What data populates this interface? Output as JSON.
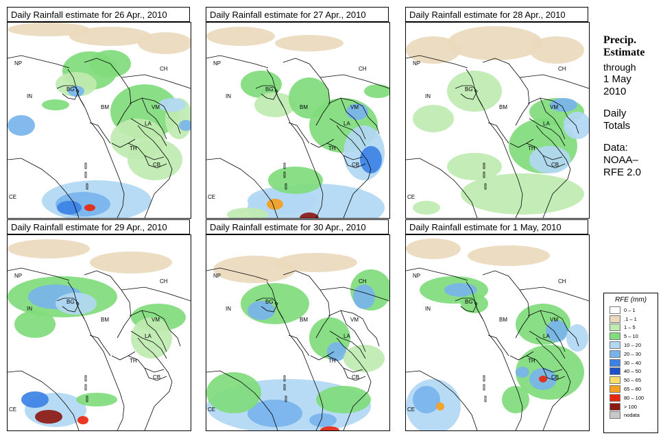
{
  "panels": [
    {
      "title": "Daily Rainfall estimate for  26 Apr., 2010"
    },
    {
      "title": "Daily Rainfall estimate for  27 Apr., 2010"
    },
    {
      "title": "Daily Rainfall estimate for  28 Apr., 2010"
    },
    {
      "title": "Daily Rainfall estimate for  29 Apr., 2010"
    },
    {
      "title": "Daily Rainfall estimate for  30 Apr., 2010"
    },
    {
      "title": "Daily Rainfall estimate for  1 May, 2010"
    }
  ],
  "country_labels": {
    "NP": "NP",
    "IN": "IN",
    "BG": "BG",
    "BM": "BM",
    "CH": "CH",
    "VM": "VM",
    "LA": "LA",
    "TH": "TH",
    "CB": "CB",
    "CE": "CE"
  },
  "sidebar": {
    "heading_1": "Precip.",
    "heading_2": "Estimate",
    "through": "through",
    "date_1": "1 May",
    "date_2": "2010",
    "daily_1": "Daily",
    "daily_2": "Totals",
    "data_1": "Data:",
    "data_2": "NOAA–",
    "data_3": "RFE 2.0"
  },
  "legend": {
    "title": "RFE (mm)",
    "items": [
      {
        "range": "0 – 1",
        "color": "#ffffff"
      },
      {
        "range": ".1 – 1",
        "color": "#ead9bc"
      },
      {
        "range": "1 – 5",
        "color": "#bfeab0"
      },
      {
        "range": "5 – 10",
        "color": "#80dc7c"
      },
      {
        "range": "10 – 20",
        "color": "#b2d8f4"
      },
      {
        "range": "20 – 30",
        "color": "#78b4ec"
      },
      {
        "range": "30 – 40",
        "color": "#3c82e4"
      },
      {
        "range": "40 – 50",
        "color": "#1e50c8"
      },
      {
        "range": "50 – 65",
        "color": "#f8de6a"
      },
      {
        "range": "65 – 80",
        "color": "#f4a020"
      },
      {
        "range": "80 – 100",
        "color": "#e8260e"
      },
      {
        "range": "> 100",
        "color": "#8c1a12"
      },
      {
        "range": "nodata",
        "color": "#c8c8c8"
      }
    ]
  }
}
